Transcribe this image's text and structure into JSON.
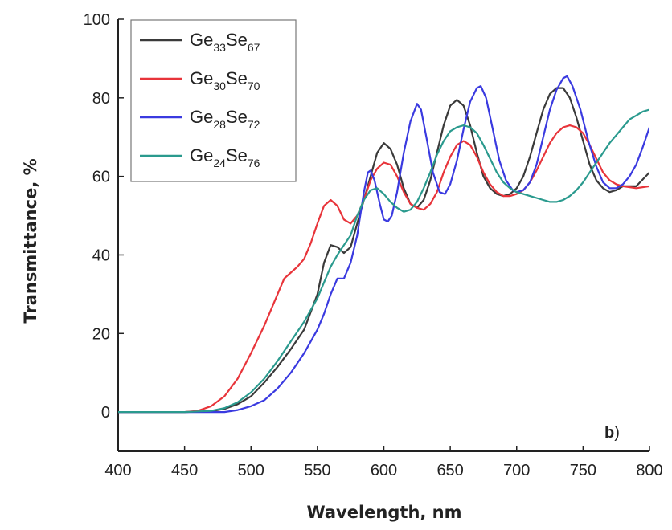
{
  "chart_data": {
    "type": "line",
    "xlabel": "Wavelength, nm",
    "ylabel": "Transmittance, %",
    "xlim": [
      400,
      800
    ],
    "ylim": [
      -10,
      100
    ],
    "x_ticks": [
      400,
      450,
      500,
      550,
      600,
      650,
      700,
      750,
      800
    ],
    "y_ticks": [
      0,
      20,
      40,
      60,
      80,
      100
    ],
    "grid": false,
    "legend_position": "top-left",
    "panel_label": {
      "bold": "b",
      "rest": ")"
    },
    "series": [
      {
        "name_parts": [
          "Ge",
          "33",
          "Se",
          "67"
        ],
        "color": "#3a3a3a",
        "points": [
          [
            400,
            0
          ],
          [
            450,
            0
          ],
          [
            470,
            0.2
          ],
          [
            480,
            0.8
          ],
          [
            490,
            2
          ],
          [
            500,
            4
          ],
          [
            510,
            7.5
          ],
          [
            520,
            11.5
          ],
          [
            530,
            16
          ],
          [
            540,
            21
          ],
          [
            550,
            30
          ],
          [
            555,
            38
          ],
          [
            560,
            42.5
          ],
          [
            565,
            42
          ],
          [
            570,
            40.5
          ],
          [
            575,
            42
          ],
          [
            580,
            48
          ],
          [
            585,
            54
          ],
          [
            590,
            60
          ],
          [
            595,
            66
          ],
          [
            600,
            68.5
          ],
          [
            605,
            67
          ],
          [
            610,
            63
          ],
          [
            615,
            57
          ],
          [
            620,
            53
          ],
          [
            625,
            52
          ],
          [
            630,
            54
          ],
          [
            635,
            59
          ],
          [
            640,
            66
          ],
          [
            645,
            73
          ],
          [
            650,
            78
          ],
          [
            655,
            79.5
          ],
          [
            660,
            78
          ],
          [
            665,
            73
          ],
          [
            670,
            66
          ],
          [
            675,
            60
          ],
          [
            680,
            57
          ],
          [
            685,
            55.5
          ],
          [
            690,
            55
          ],
          [
            695,
            55.5
          ],
          [
            700,
            57
          ],
          [
            705,
            60
          ],
          [
            710,
            65
          ],
          [
            715,
            71
          ],
          [
            720,
            77
          ],
          [
            725,
            81
          ],
          [
            730,
            82.5
          ],
          [
            735,
            82.5
          ],
          [
            740,
            80
          ],
          [
            745,
            75
          ],
          [
            750,
            69
          ],
          [
            755,
            63
          ],
          [
            760,
            59
          ],
          [
            765,
            57
          ],
          [
            770,
            56
          ],
          [
            775,
            56.5
          ],
          [
            780,
            57.5
          ],
          [
            790,
            57.5
          ],
          [
            800,
            61
          ]
        ]
      },
      {
        "name_parts": [
          "Ge",
          "30",
          "Se",
          "70"
        ],
        "color": "#e8343a",
        "points": [
          [
            400,
            0
          ],
          [
            450,
            0
          ],
          [
            460,
            0.3
          ],
          [
            470,
            1.5
          ],
          [
            480,
            4
          ],
          [
            490,
            8.5
          ],
          [
            500,
            15
          ],
          [
            510,
            22
          ],
          [
            520,
            30
          ],
          [
            525,
            34
          ],
          [
            530,
            35.5
          ],
          [
            535,
            37
          ],
          [
            540,
            39
          ],
          [
            545,
            43
          ],
          [
            550,
            48
          ],
          [
            555,
            52.5
          ],
          [
            560,
            54
          ],
          [
            565,
            52.5
          ],
          [
            570,
            49
          ],
          [
            575,
            48
          ],
          [
            580,
            50
          ],
          [
            585,
            54
          ],
          [
            590,
            59
          ],
          [
            595,
            62
          ],
          [
            600,
            63.5
          ],
          [
            605,
            63
          ],
          [
            610,
            60
          ],
          [
            615,
            56
          ],
          [
            620,
            53
          ],
          [
            625,
            52
          ],
          [
            630,
            51.5
          ],
          [
            635,
            53
          ],
          [
            640,
            56
          ],
          [
            645,
            61
          ],
          [
            650,
            65
          ],
          [
            655,
            68
          ],
          [
            660,
            69
          ],
          [
            665,
            68
          ],
          [
            670,
            65
          ],
          [
            675,
            61
          ],
          [
            680,
            58
          ],
          [
            685,
            56
          ],
          [
            690,
            55
          ],
          [
            695,
            55
          ],
          [
            700,
            55.5
          ],
          [
            705,
            56.5
          ],
          [
            710,
            58.5
          ],
          [
            715,
            61.5
          ],
          [
            720,
            65
          ],
          [
            725,
            68.5
          ],
          [
            730,
            71
          ],
          [
            735,
            72.5
          ],
          [
            740,
            73
          ],
          [
            745,
            72.5
          ],
          [
            750,
            71
          ],
          [
            755,
            68
          ],
          [
            760,
            64.5
          ],
          [
            765,
            61
          ],
          [
            770,
            59
          ],
          [
            775,
            58
          ],
          [
            780,
            57.5
          ],
          [
            790,
            57
          ],
          [
            800,
            57.5
          ]
        ]
      },
      {
        "name_parts": [
          "Ge",
          "28",
          "Se",
          "72"
        ],
        "color": "#3a3ae0",
        "points": [
          [
            400,
            0
          ],
          [
            480,
            0
          ],
          [
            490,
            0.5
          ],
          [
            500,
            1.5
          ],
          [
            510,
            3
          ],
          [
            520,
            6
          ],
          [
            530,
            10
          ],
          [
            540,
            15
          ],
          [
            550,
            21
          ],
          [
            555,
            25
          ],
          [
            560,
            30
          ],
          [
            565,
            34
          ],
          [
            570,
            34
          ],
          [
            575,
            38
          ],
          [
            580,
            45
          ],
          [
            585,
            56
          ],
          [
            588,
            61
          ],
          [
            590,
            61.5
          ],
          [
            593,
            59
          ],
          [
            597,
            53
          ],
          [
            600,
            49
          ],
          [
            603,
            48.5
          ],
          [
            606,
            50
          ],
          [
            610,
            56
          ],
          [
            615,
            66
          ],
          [
            620,
            74
          ],
          [
            625,
            78.5
          ],
          [
            628,
            77
          ],
          [
            632,
            70
          ],
          [
            637,
            61
          ],
          [
            642,
            56
          ],
          [
            646,
            55.5
          ],
          [
            650,
            58
          ],
          [
            655,
            64
          ],
          [
            660,
            72
          ],
          [
            665,
            79
          ],
          [
            670,
            82.5
          ],
          [
            673,
            83
          ],
          [
            677,
            80
          ],
          [
            682,
            72
          ],
          [
            687,
            64
          ],
          [
            692,
            59
          ],
          [
            697,
            56.5
          ],
          [
            700,
            56
          ],
          [
            705,
            56.5
          ],
          [
            710,
            58.5
          ],
          [
            715,
            63
          ],
          [
            720,
            70
          ],
          [
            725,
            77
          ],
          [
            730,
            82
          ],
          [
            735,
            85
          ],
          [
            738,
            85.5
          ],
          [
            742,
            83
          ],
          [
            748,
            77
          ],
          [
            754,
            69
          ],
          [
            760,
            62.5
          ],
          [
            765,
            58.5
          ],
          [
            770,
            57
          ],
          [
            775,
            57
          ],
          [
            780,
            58
          ],
          [
            785,
            60
          ],
          [
            790,
            63
          ],
          [
            795,
            67.5
          ],
          [
            800,
            72.5
          ]
        ]
      },
      {
        "name_parts": [
          "Ge",
          "24",
          "Se",
          "76"
        ],
        "color": "#2a9a8e",
        "points": [
          [
            400,
            0
          ],
          [
            450,
            0
          ],
          [
            470,
            0.3
          ],
          [
            480,
            1
          ],
          [
            490,
            2.5
          ],
          [
            500,
            5
          ],
          [
            510,
            8.5
          ],
          [
            520,
            13
          ],
          [
            530,
            18
          ],
          [
            540,
            23
          ],
          [
            550,
            29
          ],
          [
            555,
            33
          ],
          [
            560,
            37
          ],
          [
            565,
            40
          ],
          [
            570,
            42.5
          ],
          [
            575,
            45
          ],
          [
            580,
            50
          ],
          [
            585,
            54
          ],
          [
            590,
            56.5
          ],
          [
            595,
            57
          ],
          [
            600,
            55.5
          ],
          [
            605,
            53.5
          ],
          [
            610,
            52
          ],
          [
            615,
            51
          ],
          [
            620,
            51.5
          ],
          [
            625,
            53.5
          ],
          [
            630,
            57
          ],
          [
            635,
            61
          ],
          [
            640,
            65.5
          ],
          [
            645,
            69
          ],
          [
            650,
            71.5
          ],
          [
            655,
            72.5
          ],
          [
            660,
            73
          ],
          [
            665,
            72.5
          ],
          [
            670,
            71
          ],
          [
            675,
            68
          ],
          [
            680,
            64.5
          ],
          [
            685,
            61
          ],
          [
            690,
            58.5
          ],
          [
            695,
            57
          ],
          [
            700,
            56
          ],
          [
            705,
            55.5
          ],
          [
            710,
            55
          ],
          [
            715,
            54.5
          ],
          [
            720,
            54
          ],
          [
            725,
            53.5
          ],
          [
            730,
            53.5
          ],
          [
            735,
            54
          ],
          [
            740,
            55
          ],
          [
            745,
            56.5
          ],
          [
            750,
            58.5
          ],
          [
            755,
            61
          ],
          [
            760,
            63.5
          ],
          [
            765,
            66
          ],
          [
            770,
            68.5
          ],
          [
            775,
            70.5
          ],
          [
            780,
            72.5
          ],
          [
            785,
            74.5
          ],
          [
            790,
            75.5
          ],
          [
            795,
            76.5
          ],
          [
            800,
            77
          ]
        ]
      }
    ]
  }
}
